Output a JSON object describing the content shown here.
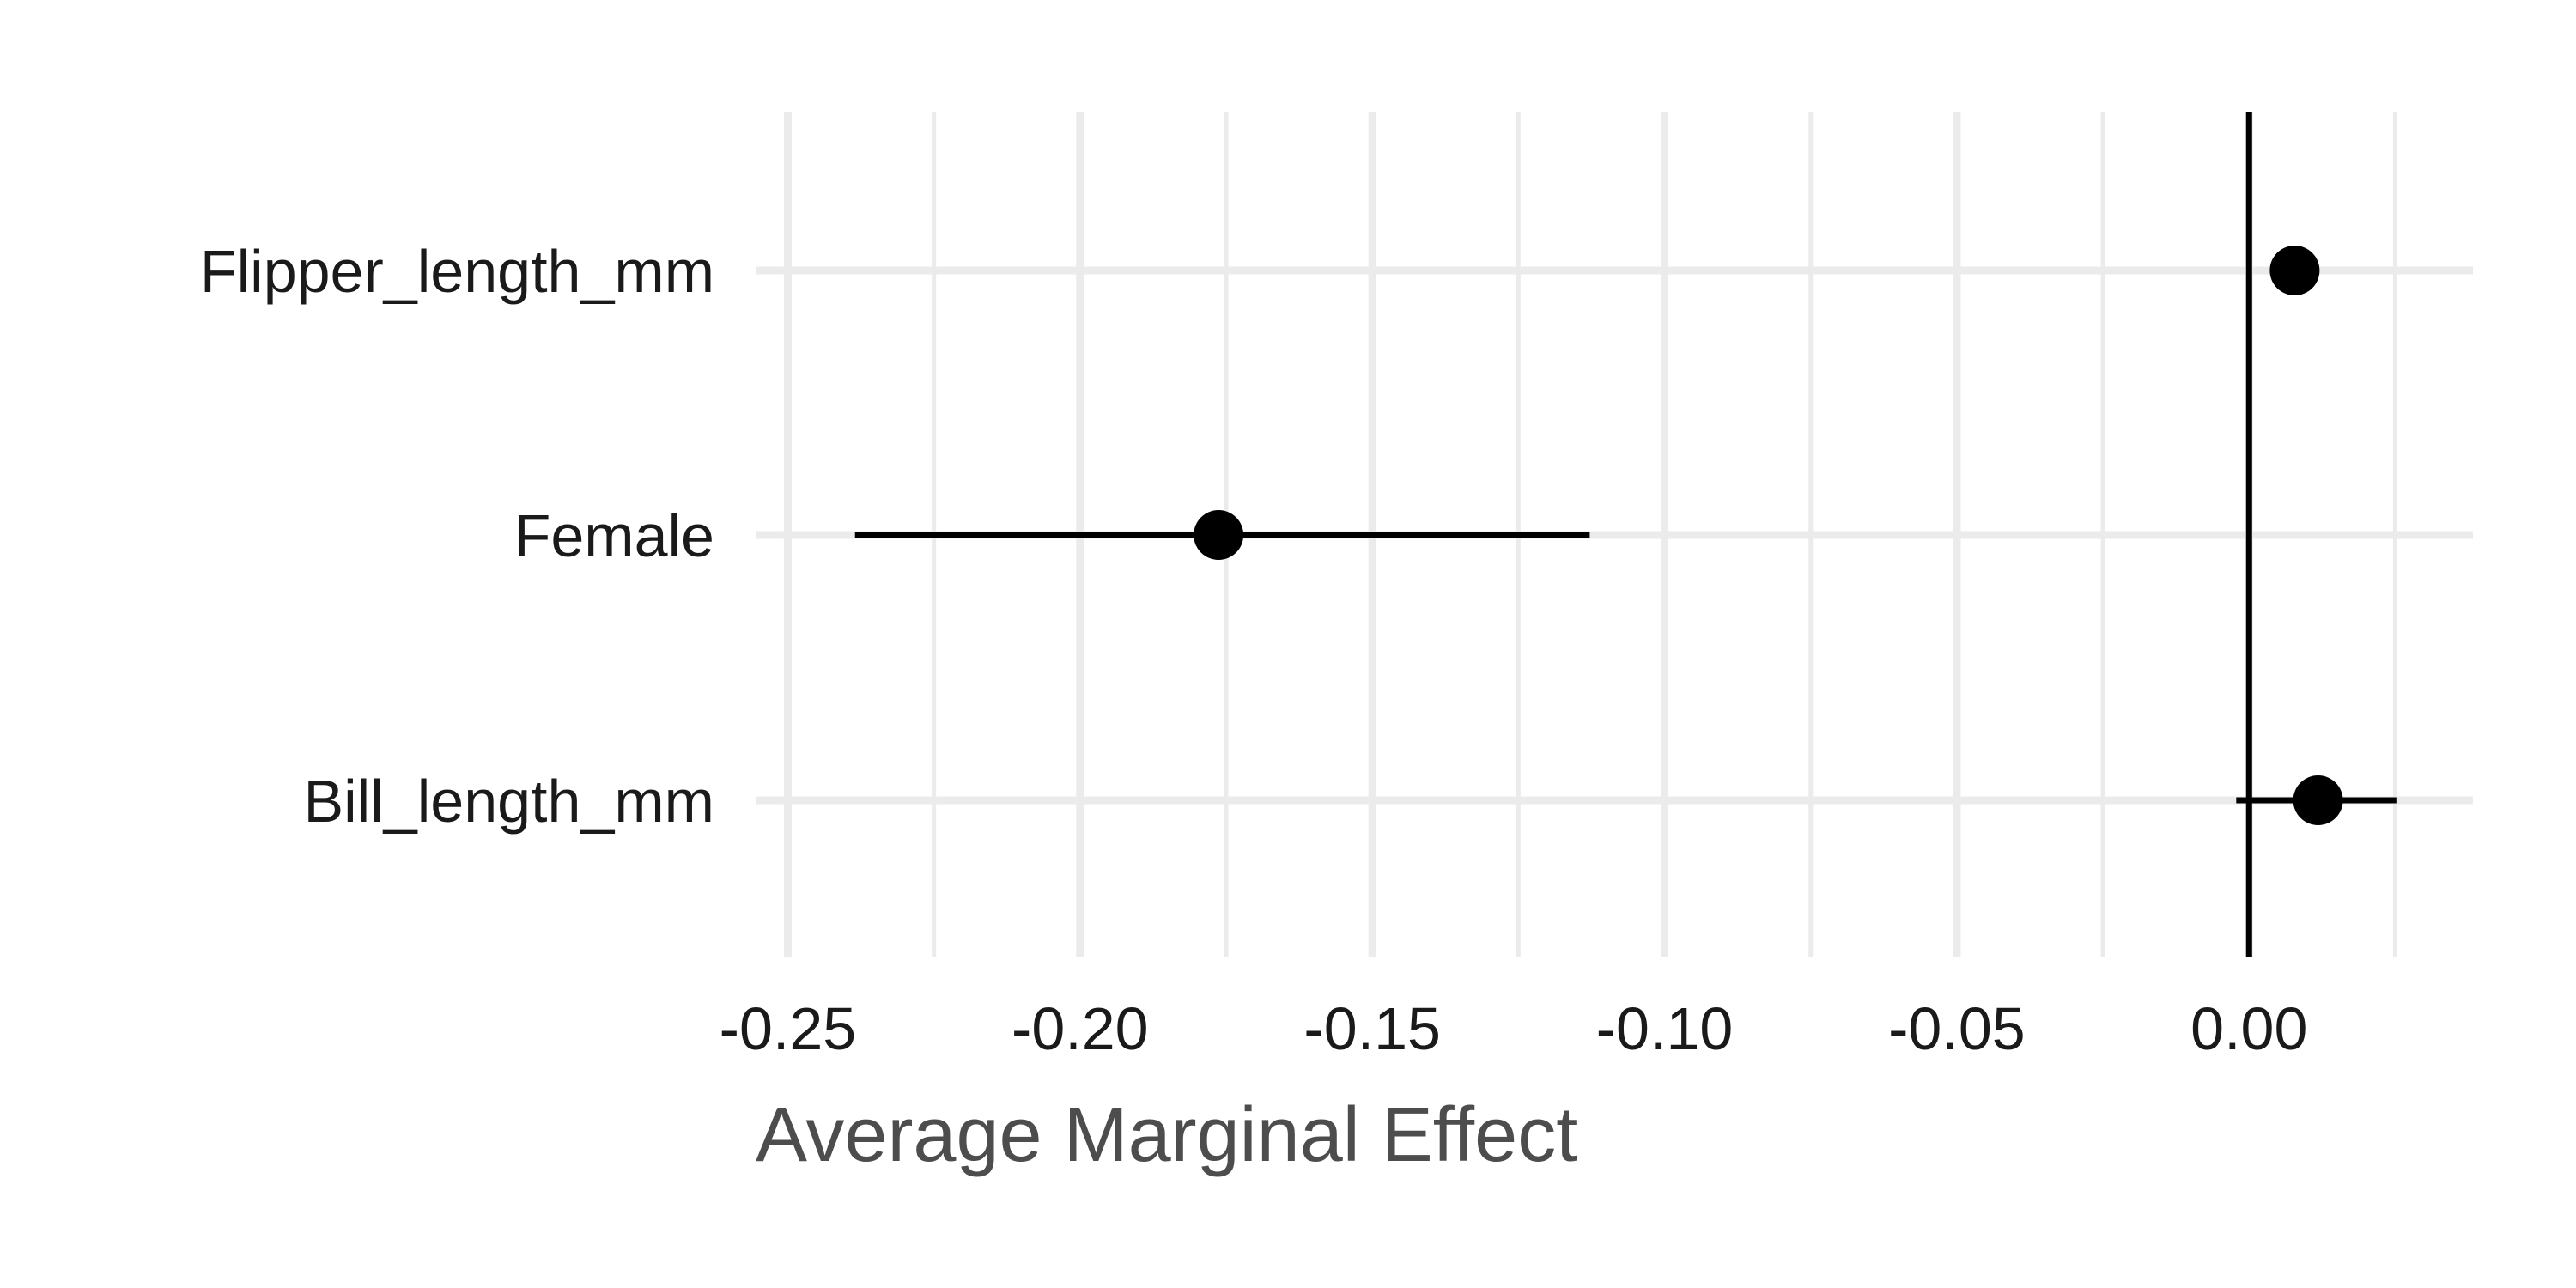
{
  "chart_data": {
    "type": "scatter",
    "title": "",
    "xlabel": "Average Marginal Effect",
    "ylabel": "",
    "xlim": [
      -0.2555,
      0.0383
    ],
    "x_ticks": [
      -0.25,
      -0.2,
      -0.15,
      -0.1,
      -0.05,
      0.0
    ],
    "x_tick_labels": [
      "-0.25",
      "-0.20",
      "-0.15",
      "-0.10",
      "-0.05",
      "0.00"
    ],
    "categories": [
      "Flipper_length_mm",
      "Female",
      "Bill_length_mm"
    ],
    "points": [
      {
        "term": "Flipper_length_mm",
        "estimate": 0.0078,
        "conf_low": 0.0068,
        "conf_high": 0.0088
      },
      {
        "term": "Female",
        "estimate": -0.1763,
        "conf_low": -0.2385,
        "conf_high": -0.1128
      },
      {
        "term": "Bill_length_mm",
        "estimate": 0.0118,
        "conf_low": -0.0022,
        "conf_high": 0.0252
      }
    ],
    "reference_line": 0,
    "grid": true,
    "legend": "none",
    "colors": {
      "point": "#000000",
      "interval": "#000000",
      "grid": "#ebebeb",
      "reference": "#000000"
    }
  }
}
